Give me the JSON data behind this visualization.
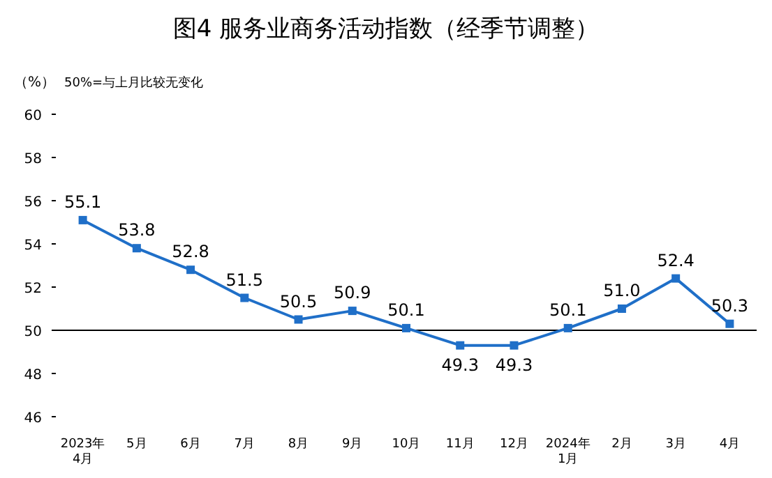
{
  "chart_data": {
    "type": "line",
    "title": "图4  服务业商务活动指数（经季节调整）",
    "ylabel": "（%）",
    "annotations": [
      "50%=与上月比较无变化"
    ],
    "categories": [
      "2023年\n4月",
      "5月",
      "6月",
      "7月",
      "8月",
      "9月",
      "10月",
      "11月",
      "12月",
      "2024年\n1月",
      "2月",
      "3月",
      "4月"
    ],
    "series": [
      {
        "color": "#1f6fc8",
        "values": [
          55.1,
          53.8,
          52.8,
          51.5,
          50.5,
          50.9,
          50.1,
          49.3,
          49.3,
          50.1,
          51.0,
          52.4,
          50.3
        ]
      }
    ],
    "value_labels": [
      "55.1",
      "53.8",
      "52.8",
      "51.5",
      "50.5",
      "50.9",
      "50.1",
      "49.3",
      "49.3",
      "50.1",
      "51.0",
      "52.4",
      "50.3"
    ],
    "ylim": [
      46,
      60
    ],
    "yticks": [
      46,
      48,
      50,
      52,
      54,
      56,
      58,
      60
    ],
    "ref_lines": [
      {
        "axis": "y",
        "value": 50,
        "color": "#000000"
      }
    ],
    "marker": "square",
    "line_style": "solid",
    "grid": false
  }
}
